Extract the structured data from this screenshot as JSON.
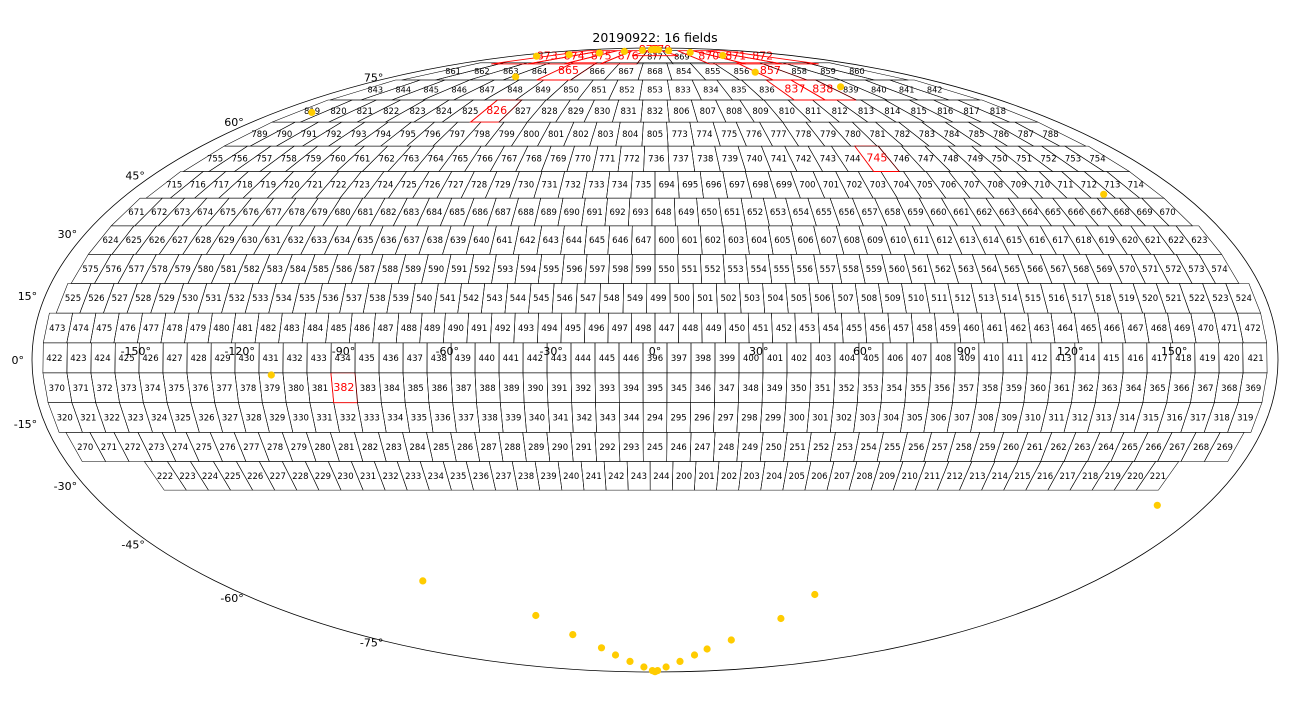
{
  "chart_data": {
    "type": "scatter",
    "projection": "mollweide",
    "title": "20190922: 16 fields",
    "grid": true,
    "colors": {
      "outline": "#000000",
      "highlight": "#ff0000",
      "points": "#ffcc00"
    },
    "ra_tick_labels": [
      {
        "ra": -150,
        "label": "-150°"
      },
      {
        "ra": -120,
        "label": "-120°"
      },
      {
        "ra": -90,
        "label": "-90°"
      },
      {
        "ra": -60,
        "label": "-60°"
      },
      {
        "ra": -30,
        "label": "-30°"
      },
      {
        "ra": 0,
        "label": "0°"
      },
      {
        "ra": 30,
        "label": "30°"
      },
      {
        "ra": 60,
        "label": "60°"
      },
      {
        "ra": 90,
        "label": "90°"
      },
      {
        "ra": 120,
        "label": "120°"
      },
      {
        "ra": 150,
        "label": "150°"
      }
    ],
    "dec_tick_labels": [
      {
        "dec": 75,
        "label": "75°"
      },
      {
        "dec": 60,
        "label": "60°"
      },
      {
        "dec": 45,
        "label": "45°"
      },
      {
        "dec": 30,
        "label": "30°"
      },
      {
        "dec": 15,
        "label": "15°"
      },
      {
        "dec": 0,
        "label": "0°"
      },
      {
        "dec": -15,
        "label": "-15°"
      },
      {
        "dec": -30,
        "label": "-30°"
      },
      {
        "dec": -45,
        "label": "-45°"
      },
      {
        "dec": -60,
        "label": "-60°"
      },
      {
        "dec": -75,
        "label": "-75°"
      }
    ],
    "field_rows": [
      {
        "dec": -27.5,
        "fields": [
          222,
          223,
          224,
          225,
          226,
          227,
          228,
          229,
          230,
          231,
          232,
          233,
          234,
          235,
          236,
          237,
          238,
          239,
          240,
          241,
          242,
          243,
          244,
          200,
          201,
          202,
          203,
          204,
          205,
          206,
          207,
          208,
          209,
          210,
          211,
          212,
          213,
          214,
          215,
          216,
          217,
          218,
          219,
          220,
          221
        ],
        "ra_min": -156,
        "ra_max": 160
      },
      {
        "dec": -20.5,
        "fields": [
          270,
          271,
          272,
          273,
          274,
          275,
          276,
          277,
          278,
          279,
          280,
          281,
          282,
          283,
          284,
          285,
          286,
          287,
          288,
          289,
          290,
          291,
          292,
          293,
          245,
          246,
          247,
          248,
          249,
          250,
          251,
          252,
          253,
          254,
          255,
          256,
          257,
          258,
          259,
          260,
          261,
          262,
          263,
          264,
          265,
          266,
          267,
          268,
          269
        ],
        "ra_min": -175,
        "ra_max": 175
      },
      {
        "dec": -13.5,
        "fields": [
          320,
          321,
          322,
          323,
          324,
          325,
          326,
          327,
          328,
          329,
          330,
          331,
          332,
          333,
          334,
          335,
          336,
          337,
          338,
          339,
          340,
          341,
          342,
          343,
          344,
          294,
          295,
          296,
          297,
          298,
          299,
          300,
          301,
          302,
          303,
          304,
          305,
          306,
          307,
          308,
          309,
          310,
          311,
          312,
          313,
          314,
          315,
          316,
          317,
          318,
          319
        ],
        "ra_min": -177,
        "ra_max": 177
      },
      {
        "dec": -6.5,
        "fields": [
          370,
          371,
          372,
          373,
          374,
          375,
          376,
          377,
          378,
          379,
          380,
          381,
          382,
          383,
          384,
          385,
          386,
          387,
          388,
          389,
          390,
          391,
          392,
          393,
          394,
          395,
          345,
          346,
          347,
          348,
          349,
          350,
          351,
          352,
          353,
          354,
          355,
          356,
          357,
          358,
          359,
          360,
          361,
          362,
          363,
          364,
          365,
          366,
          367,
          368,
          369
        ],
        "ra_min": -177,
        "ra_max": 177
      },
      {
        "dec": 0.5,
        "fields": [
          422,
          423,
          424,
          425,
          426,
          427,
          428,
          429,
          430,
          431,
          432,
          433,
          434,
          435,
          436,
          437,
          438,
          439,
          440,
          441,
          442,
          443,
          444,
          445,
          446,
          396,
          397,
          398,
          399,
          400,
          401,
          402,
          403,
          404,
          405,
          406,
          407,
          408,
          409,
          410,
          411,
          412,
          413,
          414,
          415,
          416,
          417,
          418,
          419,
          420,
          421
        ],
        "ra_min": -177,
        "ra_max": 177
      },
      {
        "dec": 7.5,
        "fields": [
          473,
          474,
          475,
          476,
          477,
          478,
          479,
          480,
          481,
          482,
          483,
          484,
          485,
          486,
          487,
          488,
          489,
          490,
          491,
          492,
          493,
          494,
          495,
          496,
          497,
          498,
          447,
          448,
          449,
          450,
          451,
          452,
          453,
          454,
          455,
          456,
          457,
          458,
          459,
          460,
          461,
          462,
          463,
          464,
          465,
          466,
          467,
          468,
          469,
          470,
          471,
          472
        ],
        "ra_min": -177,
        "ra_max": 177
      },
      {
        "dec": 14.5,
        "fields": [
          525,
          526,
          527,
          528,
          529,
          530,
          531,
          532,
          533,
          534,
          535,
          536,
          537,
          538,
          539,
          540,
          541,
          542,
          543,
          544,
          545,
          546,
          547,
          548,
          549,
          499,
          500,
          501,
          502,
          503,
          504,
          505,
          506,
          507,
          508,
          509,
          510,
          511,
          512,
          513,
          514,
          515,
          516,
          517,
          518,
          519,
          520,
          521,
          522,
          523,
          524
        ],
        "ra_min": -175,
        "ra_max": 177
      },
      {
        "dec": 21.5,
        "fields": [
          575,
          576,
          577,
          578,
          579,
          580,
          581,
          582,
          583,
          584,
          585,
          586,
          587,
          588,
          589,
          590,
          591,
          592,
          593,
          594,
          595,
          596,
          597,
          598,
          599,
          550,
          551,
          552,
          553,
          554,
          555,
          556,
          557,
          558,
          559,
          560,
          561,
          562,
          563,
          564,
          565,
          566,
          567,
          568,
          569,
          570,
          571,
          572,
          573,
          574
        ],
        "ra_min": -174,
        "ra_max": 174
      },
      {
        "dec": 28.5,
        "fields": [
          624,
          625,
          626,
          627,
          628,
          629,
          630,
          631,
          632,
          633,
          634,
          635,
          636,
          637,
          638,
          639,
          640,
          641,
          642,
          643,
          644,
          645,
          646,
          647,
          600,
          601,
          602,
          603,
          604,
          605,
          606,
          607,
          608,
          609,
          610,
          611,
          612,
          613,
          614,
          615,
          616,
          617,
          618,
          619,
          620,
          621,
          622,
          623
        ],
        "ra_min": -174,
        "ra_max": 174
      },
      {
        "dec": 35.5,
        "fields": [
          671,
          672,
          673,
          674,
          675,
          676,
          677,
          678,
          679,
          680,
          681,
          682,
          683,
          684,
          685,
          686,
          687,
          688,
          689,
          690,
          691,
          692,
          693,
          648,
          649,
          650,
          651,
          652,
          653,
          654,
          655,
          656,
          657,
          658,
          659,
          660,
          661,
          662,
          663,
          664,
          665,
          666,
          667,
          668,
          669,
          670
        ],
        "ra_min": -174,
        "ra_max": 172
      },
      {
        "dec": 42.5,
        "fields": [
          715,
          716,
          717,
          718,
          719,
          720,
          721,
          722,
          723,
          724,
          725,
          726,
          727,
          728,
          729,
          730,
          731,
          732,
          733,
          734,
          735,
          694,
          695,
          696,
          697,
          698,
          699,
          700,
          701,
          702,
          703,
          704,
          705,
          706,
          707,
          708,
          709,
          710,
          711,
          712,
          713,
          714
        ],
        "ra_min": -172,
        "ra_max": 172
      },
      {
        "dec": 49.5,
        "fields": [
          755,
          756,
          757,
          758,
          759,
          760,
          761,
          762,
          763,
          764,
          765,
          766,
          767,
          768,
          769,
          770,
          771,
          772,
          736,
          737,
          738,
          739,
          740,
          741,
          742,
          743,
          744,
          745,
          746,
          747,
          748,
          749,
          750,
          751,
          752,
          753,
          754
        ],
        "ra_min": -171,
        "ra_max": 172
      },
      {
        "dec": 56.5,
        "fields": [
          789,
          790,
          791,
          792,
          793,
          794,
          795,
          796,
          797,
          798,
          799,
          800,
          801,
          802,
          803,
          804,
          805,
          773,
          774,
          775,
          776,
          777,
          778,
          779,
          780,
          781,
          782,
          783,
          784,
          785,
          786,
          787,
          788
        ],
        "ra_min": -171,
        "ra_max": 171
      },
      {
        "dec": 63.5,
        "fields": [
          819,
          820,
          821,
          822,
          823,
          824,
          825,
          826,
          827,
          828,
          829,
          830,
          831,
          832,
          806,
          807,
          808,
          809,
          810,
          811,
          812,
          813,
          814,
          815,
          816,
          817,
          818
        ],
        "ra_min": -171,
        "ra_max": 171
      },
      {
        "dec": 70.5,
        "fields": [
          843,
          844,
          845,
          846,
          847,
          848,
          849,
          850,
          851,
          852,
          853,
          833,
          834,
          835,
          836,
          837,
          838,
          839,
          840,
          841,
          842
        ],
        "ra_min": -170,
        "ra_max": 170
      },
      {
        "dec": 77.5,
        "fields": [
          861,
          862,
          863,
          864,
          865,
          866,
          867,
          868,
          854,
          855,
          856,
          857,
          858,
          859,
          860
        ],
        "ra_min": -166,
        "ra_max": 166
      },
      {
        "dec": 84.0,
        "fields": [
          873,
          874,
          875,
          876,
          877,
          869,
          870,
          871,
          872
        ],
        "ra_min": -150,
        "ra_max": 150
      },
      {
        "dec": 88.0,
        "fields": [
          878,
          879
        ],
        "ra_min": -30,
        "ra_max": 30
      }
    ],
    "observed_fields": [
      873,
      874,
      875,
      876,
      878,
      879,
      870,
      871,
      872,
      865,
      857,
      837,
      838,
      826,
      745,
      382
    ],
    "yellow_points": [
      {
        "ra": -150,
        "dec": 84.2
      },
      {
        "ra": -120,
        "dec": 85.0
      },
      {
        "ra": -90,
        "dec": 86.0
      },
      {
        "ra": -60,
        "dec": 87.0
      },
      {
        "ra": -30,
        "dec": 87.8
      },
      {
        "ra": -10,
        "dec": 88.2
      },
      {
        "ra": 0,
        "dec": 88.5
      },
      {
        "ra": 10,
        "dec": 88.2
      },
      {
        "ra": 30,
        "dec": 87.5
      },
      {
        "ra": 60,
        "dec": 86.3
      },
      {
        "ra": 90,
        "dec": 84.6
      },
      {
        "ra": -96,
        "dec": 75.2
      },
      {
        "ra": 75,
        "dec": 77.0
      },
      {
        "ra": 111,
        "dec": 71.5
      },
      {
        "ra": -163,
        "dec": 63.0
      },
      {
        "ra": 153,
        "dec": 40.0
      },
      {
        "ra": -111,
        "dec": -3.5
      },
      {
        "ra": 164,
        "dec": -34.8
      },
      {
        "ra": -95,
        "dec": -55.0
      },
      {
        "ra": 70,
        "dec": -59.0
      },
      {
        "ra": -60,
        "dec": -65.5
      },
      {
        "ra": 65,
        "dec": -66.5
      },
      {
        "ra": -50,
        "dec": -72.0
      },
      {
        "ra": 50,
        "dec": -74.0
      },
      {
        "ra": -40,
        "dec": -77.0
      },
      {
        "ra": 40,
        "dec": -77.5
      },
      {
        "ra": -35,
        "dec": -80.0
      },
      {
        "ra": 35,
        "dec": -80.0
      },
      {
        "ra": -28,
        "dec": -83.0
      },
      {
        "ra": 28,
        "dec": -83.0
      },
      {
        "ra": -18,
        "dec": -86.0
      },
      {
        "ra": 18,
        "dec": -86.0
      },
      {
        "ra": -8,
        "dec": -88.5
      },
      {
        "ra": 8,
        "dec": -88.5
      },
      {
        "ra": 0,
        "dec": -89.5
      }
    ]
  }
}
